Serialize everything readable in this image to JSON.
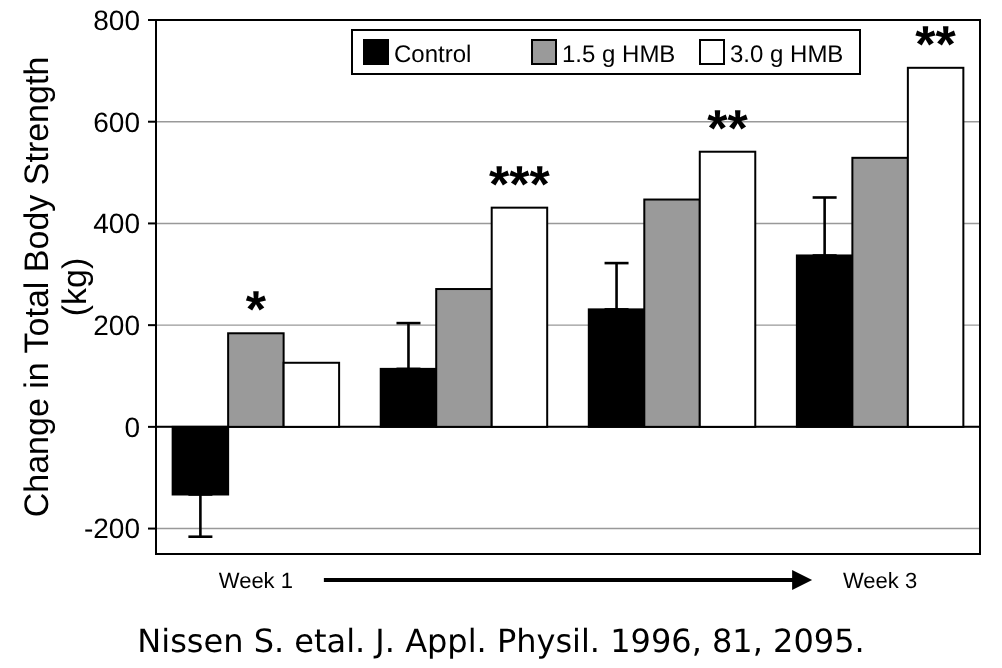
{
  "chart_data": {
    "type": "bar",
    "ylabel": "Change in Total Body Strength\n(kg)",
    "categories": [
      "Week 1",
      null,
      null,
      "Week 3"
    ],
    "series": [
      {
        "name": "Control",
        "color": "#000000",
        "values": [
          -133,
          114,
          231,
          337
        ],
        "errors": [
          [
            -216,
            -133
          ],
          [
            114,
            204
          ],
          [
            231,
            322
          ],
          [
            337,
            451
          ]
        ]
      },
      {
        "name": "1.5 g HMB",
        "color": "#9a9a9a",
        "values": [
          184,
          271,
          447,
          529
        ],
        "value_labels": [
          "*",
          null,
          null,
          null
        ]
      },
      {
        "name": "3.0 g HMB",
        "color": "#ffffff",
        "values": [
          126,
          431,
          541,
          706
        ],
        "value_labels": [
          null,
          "***",
          "**",
          "**"
        ]
      }
    ],
    "ylim": [
      -250,
      800
    ],
    "yticks": [
      -200,
      0,
      200,
      400,
      600,
      800
    ],
    "grid": "y",
    "legend": "top right",
    "annotations": [
      "Nissen S. etal. J. Appl. Physil.  1996, 81, 2095."
    ]
  }
}
